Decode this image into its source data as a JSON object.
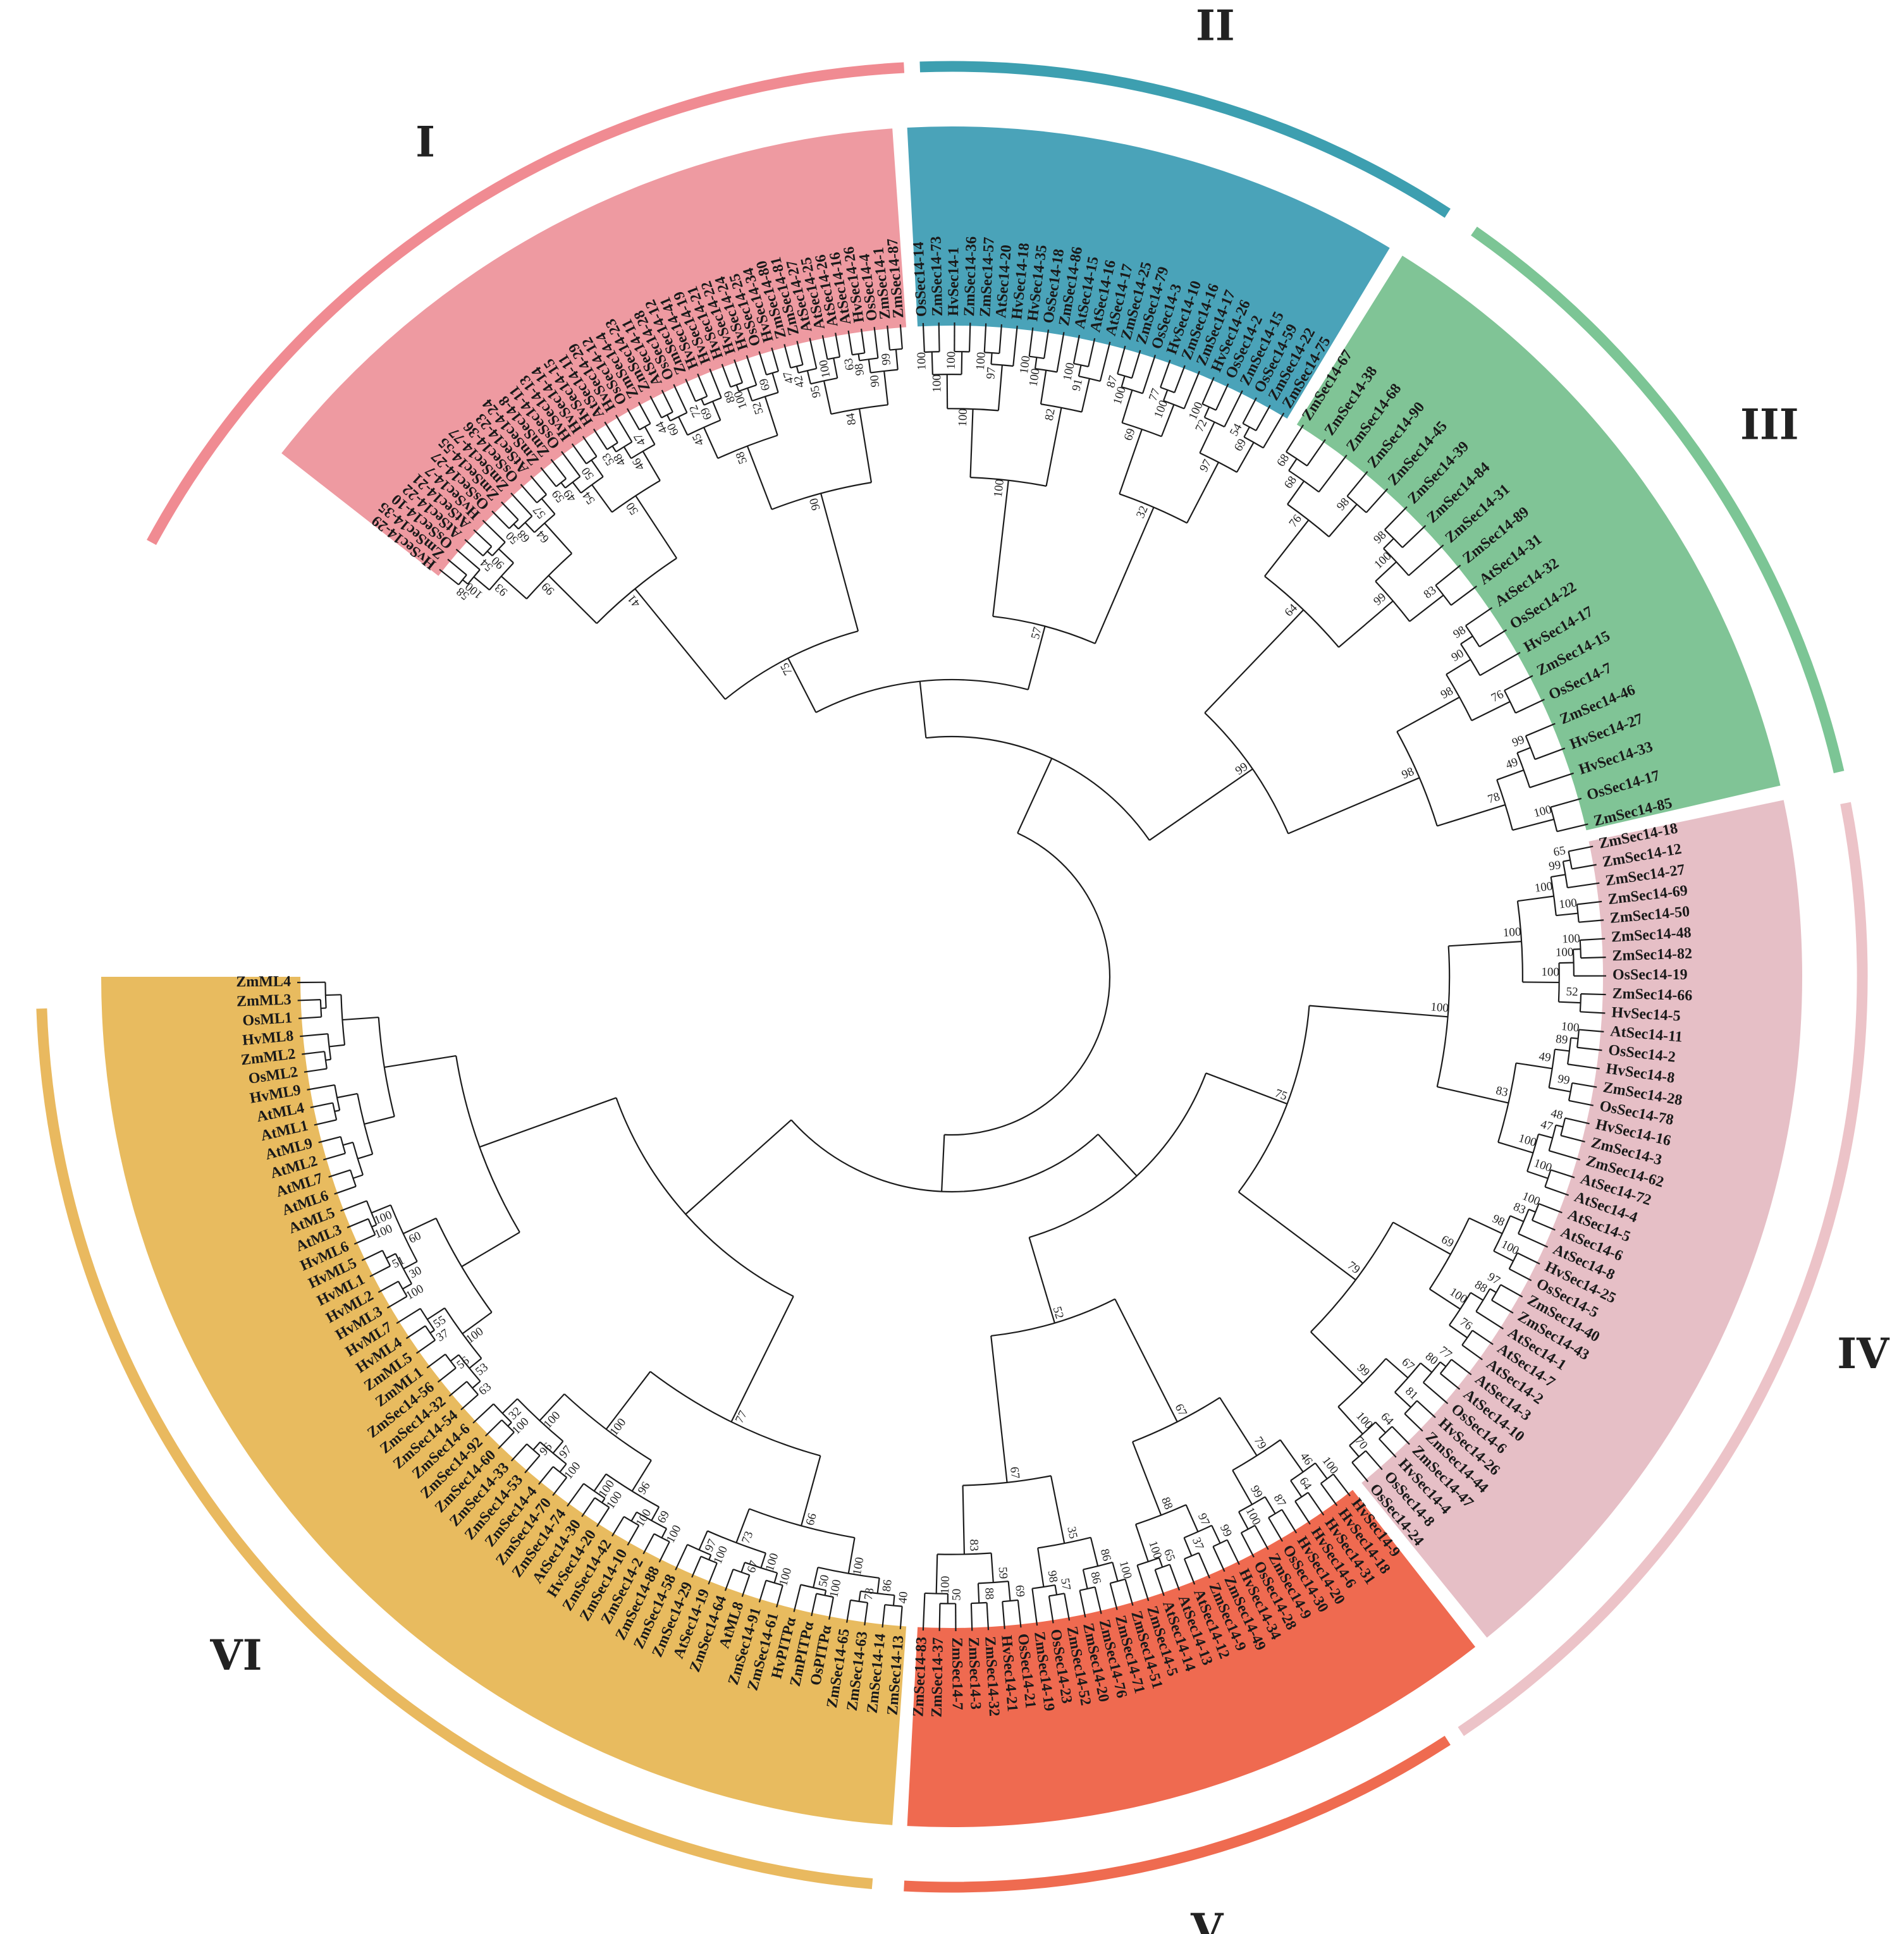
{
  "diagram": {
    "clades": [
      {
        "label": "I",
        "color": "#f08b92",
        "sector": "#ee9aa1",
        "ring_start": -61.5,
        "ring_end": -3,
        "sector_start": -52,
        "sector_end": -4,
        "leaves": [
          "HvSec14-29",
          "ZmSec14-35",
          "OsSec14-10",
          "AtSec14-22",
          "AtSec14-21",
          "HvSec14-7",
          "OsSec14-27",
          "ZmSec14-55",
          "ZmSec14-77",
          "OsSec14-36",
          "AtSec14-23",
          "ZmSec14-24",
          "ZmSec14-8",
          "OsSec14-11",
          "HvSec14-13",
          "HvSec14-14",
          "HvSec14-15",
          "AtSec14-11",
          "HvSec14-29",
          "OsSec14-12",
          "ZmSec14-4",
          "ZmSec14-23",
          "AtSec14-11",
          "OsSec14-28",
          "ZmSec14-12",
          "HvSec14-41",
          "HvSec14-19",
          "HvSec14-21",
          "HvSec14-22",
          "HvSec14-24",
          "OsSec14-25",
          "HvSec14-34",
          "ZmSec14-80",
          "ZmSec14-81",
          "AtSec14-27",
          "AtSec14-25",
          "AtSec14-26",
          "AtSec14-16",
          "HvSec14-26",
          "OsSec14-4",
          "ZmSec14-1",
          "ZmSec14-87"
        ]
      },
      {
        "label": "II",
        "color": "#3d9fb0",
        "sector": "#4aa3b9",
        "ring_start": -2,
        "ring_end": 33,
        "sector_start": -3,
        "sector_end": 31,
        "leaves": [
          "OsSec14-14",
          "ZmSec14-73",
          "HvSec14-1",
          "ZmSec14-36",
          "ZmSec14-57",
          "AtSec14-20",
          "HvSec14-18",
          "HvSec14-35",
          "OsSec14-18",
          "ZmSec14-86",
          "AtSec14-15",
          "AtSec14-16",
          "AtSec14-17",
          "ZmSec14-25",
          "ZmSec14-79",
          "OsSec14-3",
          "HvSec14-10",
          "ZmSec14-16",
          "ZmSec14-17",
          "HvSec14-26",
          "OsSec14-2",
          "ZmSec14-15",
          "OsSec14-59",
          "ZmSec14-22",
          "ZmSec14-75"
        ]
      },
      {
        "label": "III",
        "color": "#7cc595",
        "sector": "#80c496",
        "ring_start": 35,
        "ring_end": 77,
        "sector_start": 32,
        "sector_end": 77,
        "leaves": [
          "ZmSec14-67",
          "ZmSec14-38",
          "ZmSec14-68",
          "ZmSec14-90",
          "ZmSec14-45",
          "ZmSec14-39",
          "ZmSec14-84",
          "ZmSec14-31",
          "ZmSec14-89",
          "AtSec14-31",
          "AtSec14-32",
          "OsSec14-22",
          "HvSec14-17",
          "ZmSec14-15",
          "OsSec14-7",
          "ZmSec14-46",
          "HvSec14-27",
          "HvSec14-33",
          "OsSec14-17",
          "ZmSec14-85"
        ]
      },
      {
        "label": "IV",
        "color": "#ecc3c8",
        "sector": "#e6bfc6",
        "ring_start": 79,
        "ring_end": 146,
        "sector_start": 78,
        "sector_end": 141,
        "leaves": [
          "ZmSec14-18",
          "ZmSec14-12",
          "ZmSec14-27",
          "ZmSec14-69",
          "ZmSec14-50",
          "ZmSec14-48",
          "ZmSec14-82",
          "OsSec14-19",
          "ZmSec14-66",
          "HvSec14-5",
          "AtSec14-11",
          "OsSec14-2",
          "HvSec14-8",
          "ZmSec14-28",
          "OsSec14-78",
          "HvSec14-16",
          "ZmSec14-3",
          "ZmSec14-62",
          "AtSec14-72",
          "AtSec14-4",
          "AtSec14-5",
          "AtSec14-6",
          "AtSec14-8",
          "HvSec14-25",
          "OsSec14-5",
          "ZmSec14-40",
          "ZmSec14-43",
          "AtSec14-1",
          "AtSec14-7",
          "AtSec14-2",
          "AtSec14-3",
          "AtSec14-10",
          "OsSec14-6",
          "HvSec14-26",
          "ZmSec14-44",
          "ZmSec14-47",
          "HvSec14-4",
          "OsSec14-8",
          "OsSec14-24"
        ]
      },
      {
        "label": "V",
        "color": "#ef6b50",
        "sector": "#ef6a50",
        "ring_start": 147,
        "ring_end": 183,
        "sector_start": 142,
        "sector_end": 183,
        "leaves": [
          "HvSec14-9",
          "HvSec14-18",
          "HvSec14-31",
          "HvSec14-6",
          "HvSec14-20",
          "OsSec14-30",
          "ZmSec14-9",
          "OsSec14-28",
          "HvSec14-34",
          "ZmSec14-49",
          "ZmSec14-9",
          "AtSec14-12",
          "AtSec14-13",
          "AtSec14-14",
          "ZmSec14-5",
          "ZmSec14-51",
          "ZmSec14-71",
          "ZmSec14-76",
          "ZmSec14-20",
          "ZmSec14-52",
          "OsSec14-23",
          "ZmSec14-19",
          "OsSec14-21",
          "HvSec14-21",
          "ZmSec14-32",
          "ZmSec14-3",
          "ZmSec14-7",
          "ZmSec14-37",
          "ZmSec14-83"
        ]
      },
      {
        "label": "VI",
        "color": "#e9b95f",
        "sector": "#e8bb5f",
        "ring_start": 185,
        "ring_end": 268,
        "sector_start": 184,
        "sector_end": 270,
        "leaves": [
          "ZmSec14-13",
          "ZmSec14-14",
          "ZmSec14-63",
          "ZmSec14-65",
          "OsPITPα",
          "ZmPITPα",
          "HvPITPα",
          "ZmSec14-61",
          "ZmSec14-91",
          "AtML8",
          "ZmSec14-64",
          "AtSec14-19",
          "ZmSec14-29",
          "ZmSec14-58",
          "ZmSec14-88",
          "ZmSec14-2",
          "ZmSec14-10",
          "ZmSec14-42",
          "HvSec14-20",
          "AtSec14-30",
          "ZmSec14-74",
          "ZmSec14-70",
          "ZmSec14-4",
          "ZmSec14-53",
          "ZmSec14-33",
          "ZmSec14-60",
          "ZmSec14-92",
          "ZmSec14-6",
          "ZmSec14-54",
          "ZmSec14-32",
          "ZmSec14-56",
          "ZmML1",
          "ZmML5",
          "HvML4",
          "HvML7",
          "HvML3",
          "HvML2",
          "HvML1",
          "HvML5",
          "HvML6",
          "AtML3",
          "AtML5",
          "AtML6",
          "AtML7",
          "AtML2",
          "AtML9",
          "AtML1",
          "AtML4",
          "HvML9",
          "OsML2",
          "ZmML2",
          "HvML8",
          "OsML1",
          "ZmML3",
          "ZmML4"
        ]
      }
    ],
    "support_values": [
      "58",
      "100",
      "54",
      "90",
      "93",
      "50",
      "68",
      "57",
      "64",
      "99",
      "59",
      "49",
      "50",
      "54",
      "53",
      "48",
      "47",
      "46",
      "50",
      "41",
      "44",
      "60",
      "72",
      "69",
      "45",
      "89",
      "100",
      "69",
      "52",
      "58",
      "47",
      "42",
      "100",
      "95",
      "63",
      "98",
      "99",
      "90",
      "84",
      "90",
      "75",
      "100",
      "100",
      "100",
      "100",
      "97",
      "100",
      "100",
      "100",
      "100",
      "91",
      "82",
      "100",
      "87",
      "100",
      "77",
      "100",
      "69",
      "100",
      "72",
      "54",
      "69",
      "97",
      "32",
      "57",
      "68",
      "68",
      "98",
      "76",
      "98",
      "100",
      "83",
      "99",
      "64",
      "98",
      "90",
      "76",
      "98",
      "99",
      "49",
      "100",
      "78",
      "98",
      "99",
      "65",
      "99",
      "100",
      "100",
      "100",
      "100",
      "52",
      "100",
      "100",
      "100",
      "89",
      "99",
      "49",
      "48",
      "47",
      "100",
      "100",
      "83",
      "100",
      "100",
      "83",
      "100",
      "98",
      "97",
      "88",
      "76",
      "100",
      "69",
      "77",
      "80",
      "81",
      "67",
      "64",
      "70",
      "100",
      "99",
      "79",
      "75",
      "100",
      "64",
      "46",
      "87",
      "100",
      "99",
      "79",
      "99",
      "37",
      "97",
      "65",
      "100",
      "88",
      "67",
      "100",
      "86",
      "86",
      "57",
      "98",
      "35",
      "69",
      "88",
      "59",
      "50",
      "100",
      "83",
      "67",
      "52",
      "40",
      "78",
      "86",
      "100",
      "50",
      "100",
      "100",
      "67",
      "100",
      "100",
      "97",
      "73",
      "66",
      "100",
      "100",
      "69",
      "100",
      "100",
      "96",
      "100",
      "96",
      "97",
      "100",
      "32",
      "100",
      "100",
      "77",
      "63",
      "56",
      "53",
      "37",
      "55",
      "100",
      "100",
      "51",
      "30",
      "100",
      "100",
      "60"
    ]
  }
}
